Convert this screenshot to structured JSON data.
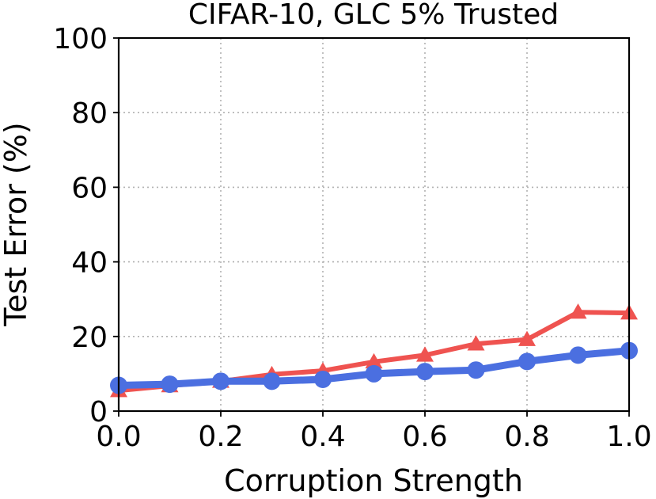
{
  "chart_data": {
    "type": "line",
    "title": "CIFAR-10, GLC 5% Trusted",
    "xlabel": "Corruption Strength",
    "ylabel": "Test Error (%)",
    "xlim": [
      0.0,
      1.0
    ],
    "ylim": [
      0,
      100
    ],
    "xticks": [
      "0.0",
      "0.2",
      "0.4",
      "0.6",
      "0.8",
      "1.0"
    ],
    "yticks": [
      "0",
      "20",
      "40",
      "60",
      "80",
      "100"
    ],
    "grid": true,
    "x": [
      0.0,
      0.1,
      0.2,
      0.3,
      0.4,
      0.5,
      0.6,
      0.7,
      0.8,
      0.9,
      1.0
    ],
    "series": [
      {
        "marker": "triangle",
        "color": "#ef5350",
        "values": [
          5.5,
          6.8,
          8.0,
          9.8,
          10.8,
          13.2,
          15.0,
          18.0,
          19.2,
          26.5,
          26.3
        ]
      },
      {
        "marker": "circle",
        "color": "#4b6fe0",
        "values": [
          6.9,
          7.2,
          8.0,
          8.0,
          8.5,
          10.0,
          10.6,
          11.0,
          13.3,
          15.0,
          16.2
        ]
      }
    ]
  }
}
